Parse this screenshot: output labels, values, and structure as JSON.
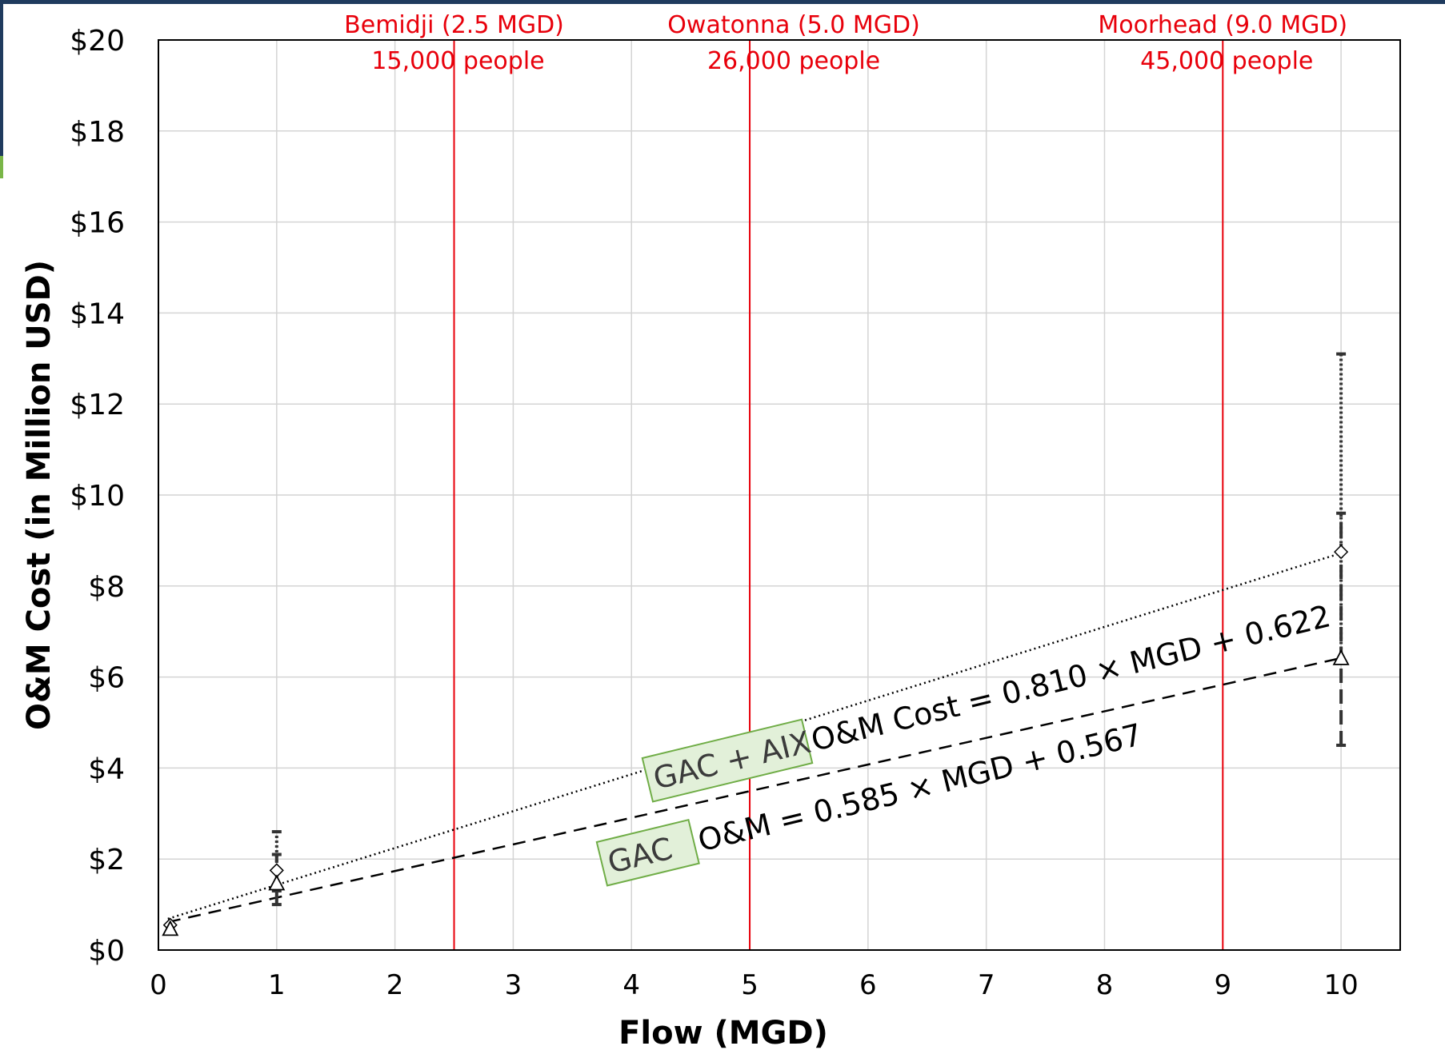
{
  "chart_data": {
    "type": "scatter",
    "xlabel": "Flow (MGD)",
    "ylabel": "O&M Cost (in Million USD)",
    "xlim": [
      0,
      10.5
    ],
    "ylim": [
      0,
      20
    ],
    "x_ticks": [
      "0",
      "1",
      "2",
      "3",
      "4",
      "5",
      "6",
      "7",
      "8",
      "9",
      "10"
    ],
    "y_ticks": [
      "$0",
      "$2",
      "$4",
      "$6",
      "$8",
      "$10",
      "$12",
      "$14",
      "$16",
      "$18",
      "$20"
    ],
    "grid": true,
    "legend": "none",
    "series": [
      {
        "marker": "diamond",
        "line_style": "dotted",
        "points": [
          {
            "x": 0.1,
            "y": 0.55
          },
          {
            "x": 1,
            "y": 1.75
          },
          {
            "x": 10,
            "y": 8.75
          }
        ],
        "error_bars": [
          {
            "x": 1,
            "low": 1.3,
            "high": 2.6
          },
          {
            "x": 10,
            "low": 6.3,
            "high": 13.1
          }
        ],
        "trendline": {
          "slope": 0.81,
          "intercept": 0.622,
          "equation_label": "O&M Cost = 0.810 × MGD + 0.622",
          "tag": "GAC + AIX"
        }
      },
      {
        "marker": "triangle",
        "line_style": "dashed",
        "points": [
          {
            "x": 0.1,
            "y": 0.45
          },
          {
            "x": 1,
            "y": 1.45
          },
          {
            "x": 10,
            "y": 6.4
          }
        ],
        "error_bars": [
          {
            "x": 1,
            "low": 1.0,
            "high": 2.1
          },
          {
            "x": 10,
            "low": 4.5,
            "high": 9.6
          }
        ],
        "trendline": {
          "slope": 0.585,
          "intercept": 0.567,
          "equation_label": "O&M = 0.585 × MGD + 0.567",
          "tag": "GAC"
        }
      }
    ],
    "annotations": [
      {
        "x": 2.5,
        "line1": "Bemidji (2.5 MGD)",
        "line2": "15,000 people"
      },
      {
        "x": 5.0,
        "line1": "Owatonna (5.0 MGD)",
        "line2": "26,000 people"
      },
      {
        "x": 9.0,
        "line1": "Moorhead (9.0 MGD)",
        "line2": "45,000 people"
      }
    ],
    "colors": {
      "marker_line": "#000000",
      "reference_line": "#e8000b",
      "annotation_text": "#e8000b",
      "gridline": "#d4d4d4",
      "tag_fill": "#e2f0d9",
      "tag_border": "#70ad47",
      "tag_text": "#3b3b3b",
      "frame": "#1f3b5e",
      "frame_accent": "#7ab648"
    }
  }
}
